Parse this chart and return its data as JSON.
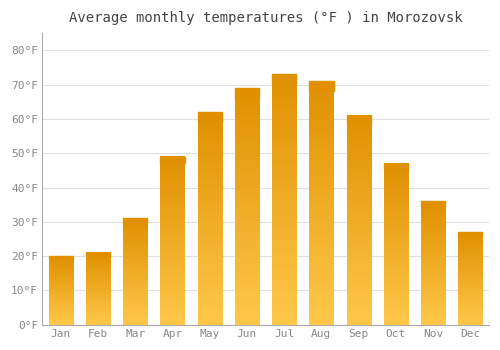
{
  "title": "Average monthly temperatures (°F ) in Morozovsk",
  "months": [
    "Jan",
    "Feb",
    "Mar",
    "Apr",
    "May",
    "Jun",
    "Jul",
    "Aug",
    "Sep",
    "Oct",
    "Nov",
    "Dec"
  ],
  "values": [
    20,
    21,
    31,
    49,
    62,
    69,
    73,
    71,
    61,
    47,
    36,
    27
  ],
  "bar_color_main": "#F5A623",
  "bar_color_light": "#FFC84A",
  "bar_color_dark": "#E09000",
  "background_color": "#FFFFFF",
  "plot_bg_color": "#FFFFFF",
  "grid_color": "#E0E0E0",
  "title_fontsize": 10,
  "tick_fontsize": 8,
  "tick_color": "#888888",
  "ylim": [
    0,
    85
  ],
  "yticks": [
    0,
    10,
    20,
    30,
    40,
    50,
    60,
    70,
    80
  ],
  "ytick_labels": [
    "0°F",
    "10°F",
    "20°F",
    "30°F",
    "40°F",
    "50°F",
    "60°F",
    "70°F",
    "80°F"
  ]
}
